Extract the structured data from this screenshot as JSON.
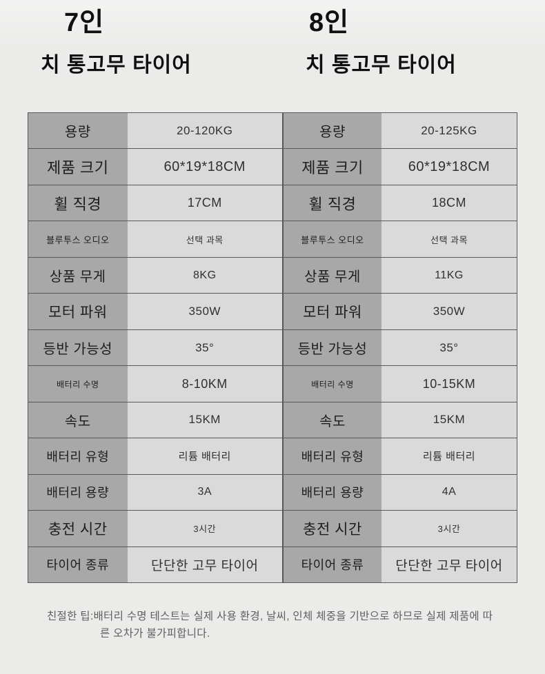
{
  "products": [
    {
      "title_line1": "7인",
      "title_line2": "치 통고무 타이어",
      "rows": [
        {
          "label": "용량",
          "value": "20-120KG"
        },
        {
          "label": "제품 크기",
          "value": "60*19*18CM"
        },
        {
          "label": "휠 직경",
          "value": "17CM"
        },
        {
          "label": "블루투스 오디오",
          "value": "선택 과목"
        },
        {
          "label": "상품 무게",
          "value": "8KG"
        },
        {
          "label": "모터 파워",
          "value": "350W"
        },
        {
          "label": "등반 가능성",
          "value": "35°"
        },
        {
          "label": "배터리 수명",
          "value": "8-10KM"
        },
        {
          "label": "속도",
          "value": "15KM"
        },
        {
          "label": "배터리 유형",
          "value": "리튬 배터리"
        },
        {
          "label": "배터리 용량",
          "value": "3A"
        },
        {
          "label": "충전 시간",
          "value": "3시간"
        },
        {
          "label": "타이어 종류",
          "value": "단단한 고무 타이어"
        }
      ]
    },
    {
      "title_line1": "8인",
      "title_line2": "치 통고무 타이어",
      "rows": [
        {
          "label": "용량",
          "value": "20-125KG"
        },
        {
          "label": "제품 크기",
          "value": "60*19*18CM"
        },
        {
          "label": "휠 직경",
          "value": "18CM"
        },
        {
          "label": "블루투스 오디오",
          "value": "선택 과목"
        },
        {
          "label": "상품 무게",
          "value": "11KG"
        },
        {
          "label": "모터 파워",
          "value": "350W"
        },
        {
          "label": "등반 가능성",
          "value": "35°"
        },
        {
          "label": "배터리 수명",
          "value": "10-15KM"
        },
        {
          "label": "속도",
          "value": "15KM"
        },
        {
          "label": "배터리 유형",
          "value": "리튬 배터리"
        },
        {
          "label": "배터리 용량",
          "value": "4A"
        },
        {
          "label": "충전 시간",
          "value": "3시간"
        },
        {
          "label": "타이어 종류",
          "value": "단단한 고무 타이어"
        }
      ]
    }
  ],
  "footer": {
    "lines": [
      "친절한 팁:배터리 수명 테스트는 실제 사용 환경, 날씨, 인체 체중을 기반으로 하므로 실제 제품에 따",
      "른 오차가 불가피합니다."
    ]
  },
  "colors": {
    "page_bg": "#ececec",
    "label_cell_bg": "#a8a8a8",
    "value_cell_bg": "#dadada",
    "divider": "#585858",
    "title_text": "#101010",
    "footer_text": "#5e5e5e"
  }
}
